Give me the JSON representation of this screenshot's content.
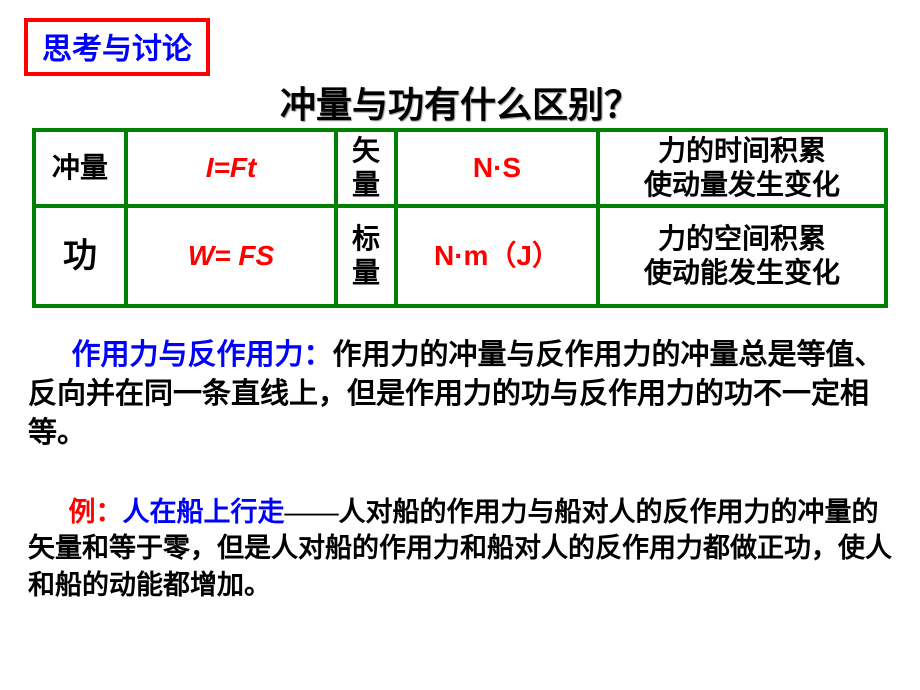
{
  "colors": {
    "box_border": "#ff0000",
    "box_text": "#0000ff",
    "title_text": "#000000",
    "table_border": "#008000",
    "formula_text": "#ff0000",
    "unit_text": "#ff0000",
    "body_text": "#000000",
    "highlight_blue": "#0000ff",
    "highlight_red": "#ff0000"
  },
  "discussion": {
    "label": "思考与讨论"
  },
  "title": "冲量与功有什么区别？",
  "table": {
    "row1": {
      "name": "冲量",
      "formula": "I=Ft",
      "type": "矢量",
      "unit": "N·S",
      "desc_line1": "力的时间积累",
      "desc_line2": "使动量发生变化"
    },
    "row2": {
      "name": "功",
      "formula": "W= FS",
      "type": "标量",
      "unit": "N·m（J）",
      "desc_line1": "力的空间积累",
      "desc_line2": "使动能发生变化"
    }
  },
  "paragraph1": {
    "lead": "作用力与反作用力：",
    "body": "作用力的冲量与反作用力的冲量总是等值、反向并在同一条直线上，但是作用力的功与反作用力的功不一定相等。"
  },
  "paragraph2": {
    "lead_red": "例：",
    "lead_blue": "人在船上行走",
    "dash": "——",
    "body": "人对船的作用力与船对人的反作用力的冲量的矢量和等于零，但是人对船的作用力和船对人的反作用力都做正功，使人和船的动能都增加。"
  }
}
